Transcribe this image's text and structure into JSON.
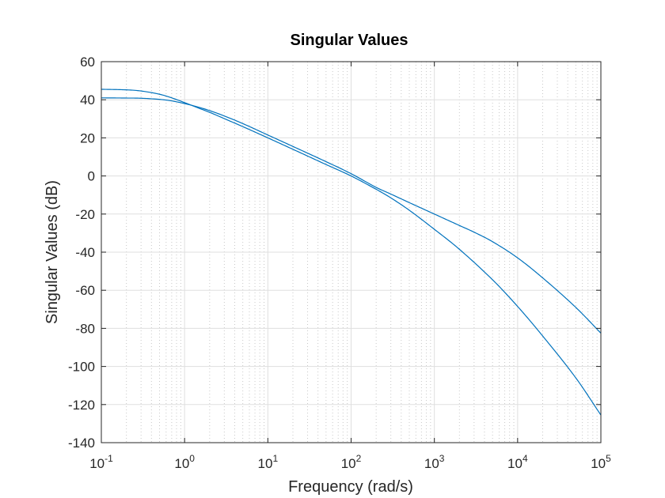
{
  "chart_data": {
    "type": "line",
    "title": "Singular Values",
    "xlabel": "Frequency (rad/s)",
    "ylabel": "Singular Values (dB)",
    "xscale": "log",
    "xlim": [
      0.1,
      100000
    ],
    "ylim": [
      -140,
      60
    ],
    "grid": true,
    "minor_grid": true,
    "color": "#0072BD",
    "x_ticks": [
      {
        "base": "10",
        "exp": "-1",
        "value": 0.1
      },
      {
        "base": "10",
        "exp": "0",
        "value": 1
      },
      {
        "base": "10",
        "exp": "1",
        "value": 10
      },
      {
        "base": "10",
        "exp": "2",
        "value": 100
      },
      {
        "base": "10",
        "exp": "3",
        "value": 1000
      },
      {
        "base": "10",
        "exp": "4",
        "value": 10000
      },
      {
        "base": "10",
        "exp": "5",
        "value": 100000
      }
    ],
    "y_ticks": [
      {
        "label": "60",
        "value": 60
      },
      {
        "label": "40",
        "value": 40
      },
      {
        "label": "20",
        "value": 20
      },
      {
        "label": "0",
        "value": 0
      },
      {
        "label": "-20",
        "value": -20
      },
      {
        "label": "-40",
        "value": -40
      },
      {
        "label": "-60",
        "value": -60
      },
      {
        "label": "-80",
        "value": -80
      },
      {
        "label": "-100",
        "value": -100
      },
      {
        "label": "-120",
        "value": -120
      },
      {
        "label": "-140",
        "value": -140
      }
    ],
    "series": [
      {
        "x": [
          0.1,
          0.2,
          0.3,
          0.5,
          0.7,
          1,
          1.5,
          2,
          3,
          5,
          10,
          20,
          50,
          100,
          200,
          300,
          500,
          1000,
          2000,
          5000,
          10000,
          20000,
          50000,
          100000
        ],
        "y": [
          45.5,
          45.2,
          44.6,
          42.9,
          41.0,
          38.5,
          35.5,
          33.4,
          30.1,
          25.9,
          20.0,
          14.0,
          6.0,
          0.0,
          -7.0,
          -11.5,
          -18.0,
          -28.0,
          -38.5,
          -54.5,
          -68.5,
          -84.0,
          -106.0,
          -125.5
        ]
      },
      {
        "x": [
          0.1,
          0.2,
          0.3,
          0.5,
          0.7,
          1,
          1.5,
          2,
          3,
          5,
          10,
          20,
          50,
          100,
          200,
          300,
          500,
          1000,
          2000,
          3000,
          5000,
          10000,
          20000,
          50000,
          100000
        ],
        "y": [
          41.0,
          40.9,
          40.8,
          40.2,
          39.4,
          38.0,
          36.0,
          34.3,
          31.5,
          27.5,
          21.5,
          15.5,
          7.5,
          1.2,
          -6.0,
          -9.5,
          -14.0,
          -20.0,
          -26.0,
          -29.5,
          -34.5,
          -43.0,
          -53.5,
          -69.0,
          -82.5
        ]
      }
    ]
  }
}
